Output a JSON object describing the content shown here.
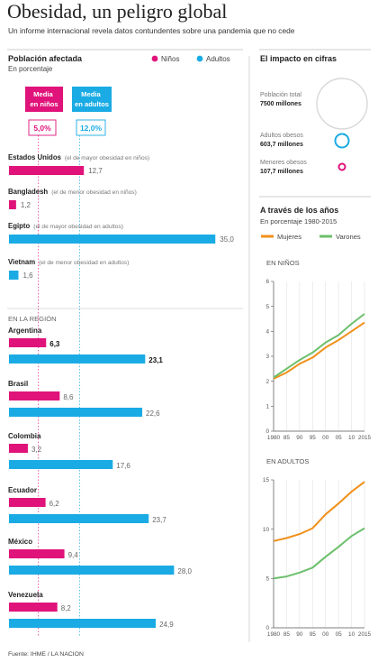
{
  "title": "Obesidad, un peligro global",
  "subtitle": "Un informe internacional revela datos contundentes sobre una pandemia que no cede",
  "left_panel": {
    "title": "Población afectada",
    "unit": "En porcentaje",
    "legend": {
      "kids": "Niños",
      "adults": "Adultos"
    },
    "world_mean": {
      "kids_label": "Media en niños",
      "kids_value": "5,0%",
      "adults_label": "Media en adultos",
      "adults_value": "12,0%"
    },
    "region_label": "EN LA REGIÓN"
  },
  "right_panel": {
    "impact_title": "El impacto en cifras",
    "population_label": "Población total",
    "population_value": "7500 millones",
    "obese_adults_label": "Adultos obesos",
    "obese_adults_value": "603,7 millones",
    "obese_kids_label": "Menores obesos",
    "obese_kids_value": "107,7 millones",
    "trend_title": "A través de los años",
    "trend_unit": "En porcentaje 1980-2015",
    "trend_legend": {
      "women": "Mujeres",
      "men": "Varones"
    },
    "kids_panel_label": "EN NIÑOS",
    "adults_panel_label": "EN ADULTOS"
  },
  "source": "Fuente: IHME / LA NACION",
  "colors": {
    "kids": "#e0137a",
    "adults": "#1aabe4",
    "women": "#f0901a",
    "men": "#6cbf6c",
    "text": "#222222",
    "muted": "#888888"
  },
  "chart_data": [
    {
      "type": "bar",
      "orientation": "horizontal",
      "title": "Población afectada",
      "subtitle": "En porcentaje",
      "series": [
        {
          "name": "Niños",
          "color": "#e0137a"
        },
        {
          "name": "Adultos",
          "color": "#1aabe4"
        }
      ],
      "reference_lines": [
        {
          "label": "Media en niños",
          "value": 5.0,
          "value_label": "5,0%"
        },
        {
          "label": "Media en adultos",
          "value": 12.0,
          "value_label": "12,0%"
        }
      ],
      "world_rows": [
        {
          "country": "Estados Unidos",
          "note": "(el de mayor obesidad en niños)",
          "series": "Niños",
          "value": 12.7,
          "value_label": "12,7"
        },
        {
          "country": "Bangladesh",
          "note": "(el de menor obesidad en niños)",
          "series": "Niños",
          "value": 1.2,
          "value_label": "1,2"
        },
        {
          "country": "Egipto",
          "note": "(el de mayor obesidad en adultos)",
          "series": "Adultos",
          "value": 35.0,
          "value_label": "35,0"
        },
        {
          "country": "Vietnam",
          "note": "(el de menor obesidad en adultos)",
          "series": "Adultos",
          "value": 1.6,
          "value_label": "1,6"
        }
      ],
      "region_rows": [
        {
          "country": "Argentina",
          "bold": true,
          "kids": 6.3,
          "kids_label": "6,3",
          "adults": 23.1,
          "adults_label": "23,1"
        },
        {
          "country": "Brasil",
          "kids": 8.6,
          "kids_label": "8,6",
          "adults": 22.6,
          "adults_label": "22,6"
        },
        {
          "country": "Colombia",
          "kids": 3.2,
          "kids_label": "3,2",
          "adults": 17.6,
          "adults_label": "17,6"
        },
        {
          "country": "Ecuador",
          "kids": 6.2,
          "kids_label": "6,2",
          "adults": 23.7,
          "adults_label": "23,7"
        },
        {
          "country": "México",
          "kids": 9.4,
          "kids_label": "9,4",
          "adults": 28.0,
          "adults_label": "28,0"
        },
        {
          "country": "Venezuela",
          "kids": 8.2,
          "kids_label": "8,2",
          "adults": 24.9,
          "adults_label": "24,9"
        }
      ]
    },
    {
      "type": "line",
      "title": "EN NIÑOS",
      "x": [
        1980,
        1985,
        1990,
        1995,
        2000,
        2005,
        2010,
        2015
      ],
      "xticks": [
        "1980",
        "85",
        "90",
        "95",
        "00",
        "05",
        "10",
        "2015"
      ],
      "ylim": [
        0,
        6
      ],
      "yticks": [
        0,
        1,
        2,
        3,
        4,
        5,
        6
      ],
      "grid": true,
      "series": [
        {
          "name": "Mujeres",
          "color": "#f0901a",
          "values": [
            2.1,
            2.35,
            2.7,
            2.95,
            3.35,
            3.65,
            4.0,
            4.35
          ]
        },
        {
          "name": "Varones",
          "color": "#6cbf6c",
          "values": [
            2.15,
            2.5,
            2.85,
            3.15,
            3.55,
            3.85,
            4.3,
            4.7
          ]
        }
      ]
    },
    {
      "type": "line",
      "title": "EN ADULTOS",
      "x": [
        1980,
        1985,
        1990,
        1995,
        2000,
        2005,
        2010,
        2015
      ],
      "xticks": [
        "1980",
        "85",
        "90",
        "95",
        "00",
        "05",
        "10",
        "2015"
      ],
      "ylim": [
        0,
        15
      ],
      "yticks": [
        0,
        5,
        10,
        15
      ],
      "grid": true,
      "series": [
        {
          "name": "Mujeres",
          "color": "#f0901a",
          "values": [
            8.8,
            9.1,
            9.5,
            10.1,
            11.5,
            12.6,
            13.8,
            14.8
          ]
        },
        {
          "name": "Varones",
          "color": "#6cbf6c",
          "values": [
            5.0,
            5.2,
            5.6,
            6.1,
            7.2,
            8.2,
            9.3,
            10.1
          ]
        }
      ]
    }
  ]
}
